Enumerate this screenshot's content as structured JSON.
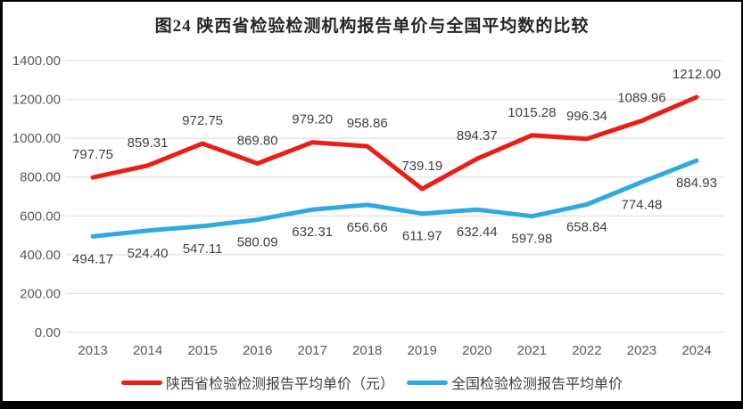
{
  "window": {
    "background": "#ffffff",
    "border_color": "#000000"
  },
  "chart_data": {
    "type": "line",
    "title": "图24 陕西省检验检测机构报告单价与全国平均数的比较",
    "categories": [
      "2013",
      "2014",
      "2015",
      "2016",
      "2017",
      "2018",
      "2019",
      "2020",
      "2021",
      "2022",
      "2023",
      "2024"
    ],
    "series": [
      {
        "name": "陕西省检验检测报告平均单价（元）",
        "color": "#ec1d14",
        "label_position": "above",
        "values": [
          797.75,
          859.31,
          972.75,
          869.8,
          979.2,
          958.86,
          739.19,
          894.37,
          1015.28,
          996.34,
          1089.96,
          1212.0
        ]
      },
      {
        "name": "全国检验检测报告平均单价",
        "color": "#2fa9df",
        "label_position": "below",
        "values": [
          494.17,
          524.4,
          547.11,
          580.09,
          632.31,
          656.66,
          611.97,
          632.44,
          597.98,
          658.84,
          774.48,
          884.93
        ]
      }
    ],
    "ylim": [
      0,
      1400
    ],
    "ytick_step": 200,
    "ytick_format_decimals": 2,
    "grid": true,
    "legend_position": "bottom",
    "colors": {
      "gridline": "#d9d9d9",
      "axis_text": "#595959",
      "data_label_text": "#404040",
      "title_text": "#262626"
    }
  }
}
